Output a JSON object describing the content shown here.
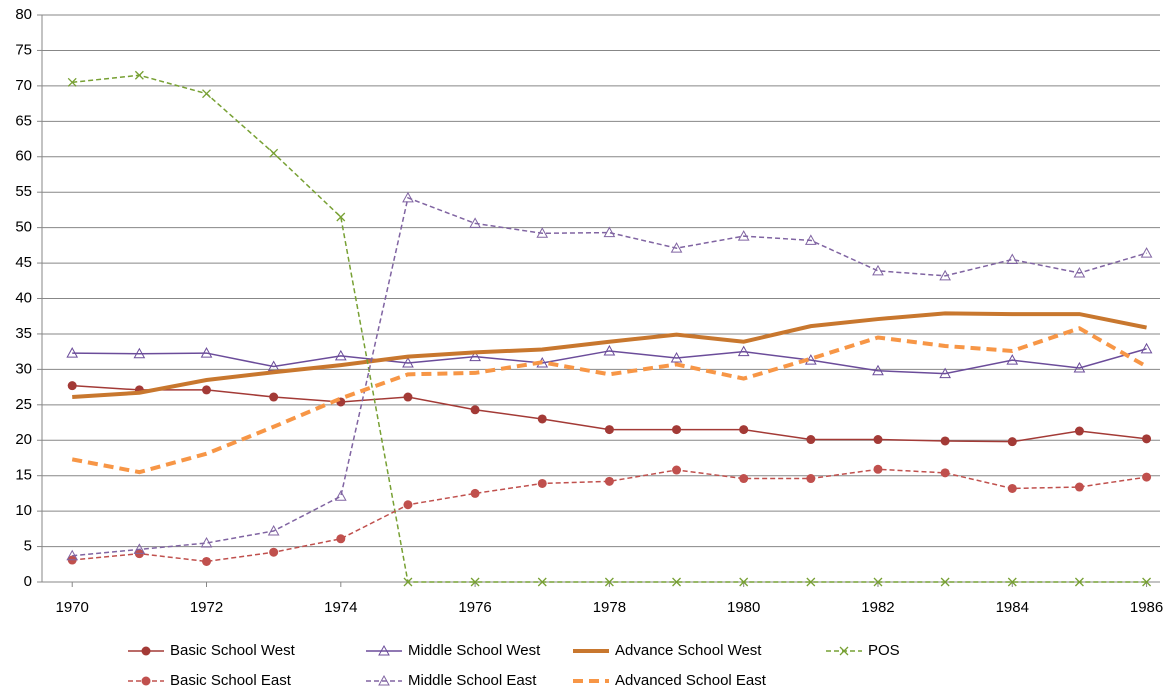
{
  "chart_data": {
    "type": "line",
    "x": [
      1970,
      1971,
      1972,
      1973,
      1974,
      1975,
      1976,
      1977,
      1978,
      1979,
      1980,
      1981,
      1982,
      1983,
      1984,
      1985,
      1986
    ],
    "xlim": [
      1969.55,
      1986.2
    ],
    "xticks": [
      1970,
      1972,
      1974,
      1976,
      1978,
      1980,
      1982,
      1984,
      1986
    ],
    "ylim": [
      0,
      80
    ],
    "yticks": [
      0,
      5,
      10,
      15,
      20,
      25,
      30,
      35,
      40,
      45,
      50,
      55,
      60,
      65,
      70,
      75,
      80
    ],
    "grid": true,
    "legend": "bottom",
    "series": [
      {
        "name": "Basic School West",
        "color": "#a33a36",
        "line": "solid",
        "marker": "circle",
        "values": [
          27.7,
          27.1,
          27.1,
          26.1,
          25.4,
          26.1,
          24.3,
          23.0,
          21.5,
          21.5,
          21.5,
          20.1,
          20.1,
          19.9,
          19.8,
          21.3,
          20.2
        ]
      },
      {
        "name": "Middle School West",
        "color": "#6b4c9a",
        "line": "solid",
        "marker": "triangle",
        "values": [
          32.3,
          32.2,
          32.3,
          30.4,
          31.9,
          30.9,
          31.8,
          30.9,
          32.6,
          31.6,
          32.5,
          31.3,
          29.8,
          29.4,
          31.3,
          30.2,
          32.9
        ]
      },
      {
        "name": "Advance School West",
        "color": "#c8772e",
        "line": "bold",
        "marker": "none",
        "values": [
          26.1,
          26.7,
          28.5,
          29.6,
          30.6,
          31.8,
          32.4,
          32.8,
          33.9,
          34.9,
          33.9,
          36.1,
          37.1,
          37.9,
          37.8,
          37.8,
          35.9
        ]
      },
      {
        "name": "POS",
        "color": "#77a033",
        "line": "dashed",
        "marker": "x",
        "values": [
          70.5,
          71.5,
          68.9,
          60.5,
          51.5,
          0,
          0,
          0,
          0,
          0,
          0,
          0,
          0,
          0,
          0,
          0,
          0
        ]
      },
      {
        "name": "Basic School East",
        "color": "#c0504d",
        "line": "dashed",
        "marker": "circle",
        "values": [
          3.1,
          4.0,
          2.9,
          4.2,
          6.1,
          10.9,
          12.5,
          13.9,
          14.2,
          15.8,
          14.6,
          14.6,
          15.9,
          15.4,
          13.2,
          13.4,
          14.8
        ]
      },
      {
        "name": "Middle School East",
        "color": "#8064a2",
        "line": "dashed",
        "marker": "triangle",
        "values": [
          3.7,
          4.6,
          5.5,
          7.2,
          12.1,
          54.2,
          50.6,
          49.2,
          49.3,
          47.1,
          48.8,
          48.2,
          43.9,
          43.2,
          45.5,
          43.6,
          46.4
        ]
      },
      {
        "name": "Advanced School East",
        "color": "#f79646",
        "line": "bold-dashed",
        "marker": "none",
        "values": [
          17.3,
          15.5,
          18.1,
          21.9,
          25.9,
          29.3,
          29.5,
          31.0,
          29.3,
          30.7,
          28.7,
          31.5,
          34.5,
          33.3,
          32.6,
          35.8,
          30.4
        ]
      }
    ]
  }
}
